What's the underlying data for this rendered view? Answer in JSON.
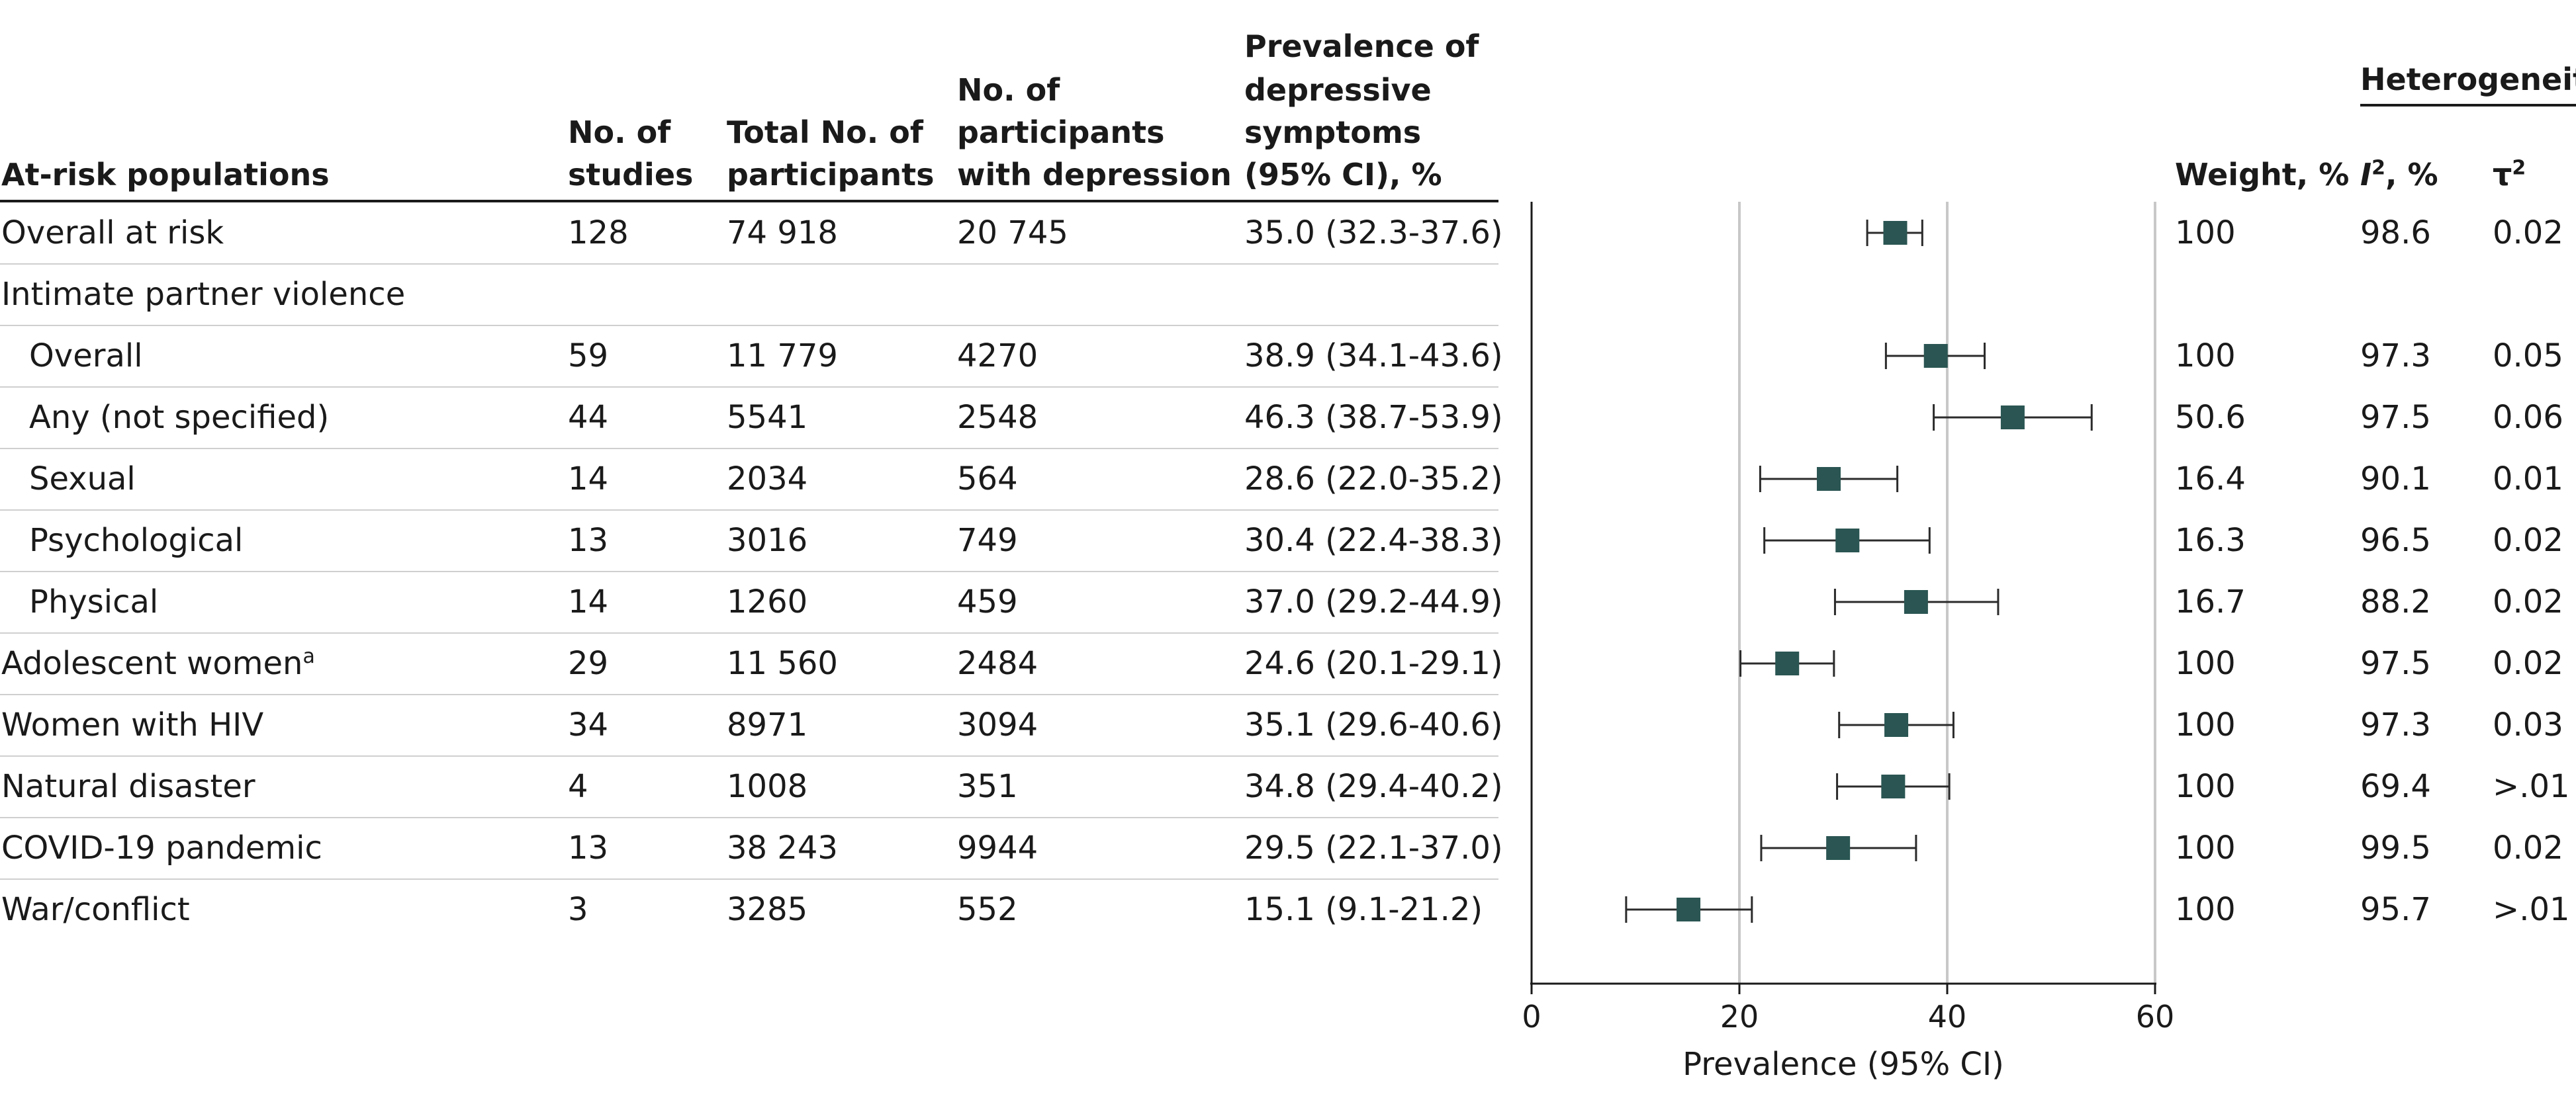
{
  "headers": {
    "population": "At-risk populations",
    "studies": [
      "No. of",
      "studies"
    ],
    "participants": [
      "Total No. of",
      "participants"
    ],
    "depression": [
      "No. of",
      "participants",
      "with depression"
    ],
    "prevalence": [
      "Prevalence of",
      "depressive",
      "symptoms",
      "(95% CI), %"
    ],
    "weight": "Weight, %",
    "heterogeneity": "Heterogeneity",
    "i2_base": "I",
    "i2_sup": "2",
    "i2_suffix": ", %",
    "tau_base": "τ",
    "tau_sup": "2"
  },
  "rows": [
    {
      "label": "Overall at risk",
      "indent": false,
      "studies": "128",
      "participants": "74 918",
      "depression": "20 745",
      "prevalence": "35.0 (32.3-37.6)",
      "weight": "100",
      "i2": "98.6",
      "tau2": "0.02"
    },
    {
      "label": "Intimate partner violence",
      "indent": false,
      "studies": "",
      "participants": "",
      "depression": "",
      "prevalence": "",
      "weight": "",
      "i2": "",
      "tau2": ""
    },
    {
      "label": "Overall",
      "indent": true,
      "studies": "59",
      "participants": "11 779",
      "depression": "4270",
      "prevalence": "38.9 (34.1-43.6)",
      "weight": "100",
      "i2": "97.3",
      "tau2": "0.05"
    },
    {
      "label": "Any (not specified)",
      "indent": true,
      "studies": "44",
      "participants": "5541",
      "depression": "2548",
      "prevalence": "46.3 (38.7-53.9)",
      "weight": "50.6",
      "i2": "97.5",
      "tau2": "0.06"
    },
    {
      "label": "Sexual",
      "indent": true,
      "studies": "14",
      "participants": "2034",
      "depression": "564",
      "prevalence": "28.6 (22.0-35.2)",
      "weight": "16.4",
      "i2": "90.1",
      "tau2": "0.01"
    },
    {
      "label": "Psychological",
      "indent": true,
      "studies": "13",
      "participants": "3016",
      "depression": "749",
      "prevalence": "30.4 (22.4-38.3)",
      "weight": "16.3",
      "i2": "96.5",
      "tau2": "0.02"
    },
    {
      "label": "Physical",
      "indent": true,
      "studies": "14",
      "participants": "1260",
      "depression": "459",
      "prevalence": "37.0 (29.2-44.9)",
      "weight": "16.7",
      "i2": "88.2",
      "tau2": "0.02"
    },
    {
      "label": "Adolescent women",
      "label_sup": "a",
      "indent": false,
      "studies": "29",
      "participants": "11 560",
      "depression": "2484",
      "prevalence": "24.6 (20.1-29.1)",
      "weight": "100",
      "i2": "97.5",
      "tau2": "0.02"
    },
    {
      "label": "Women with HIV",
      "indent": false,
      "studies": "34",
      "participants": "8971",
      "depression": "3094",
      "prevalence": "35.1 (29.6-40.6)",
      "weight": "100",
      "i2": "97.3",
      "tau2": "0.03"
    },
    {
      "label": "Natural disaster",
      "indent": false,
      "studies": "4",
      "participants": "1008",
      "depression": "351",
      "prevalence": "34.8 (29.4-40.2)",
      "weight": "100",
      "i2": "69.4",
      "tau2": ">.01"
    },
    {
      "label": "COVID-19 pandemic",
      "indent": false,
      "studies": "13",
      "participants": "38 243",
      "depression": "9944",
      "prevalence": "29.5 (22.1-37.0)",
      "weight": "100",
      "i2": "99.5",
      "tau2": "0.02"
    },
    {
      "label": "War/conflict",
      "indent": false,
      "studies": "3",
      "participants": "3285",
      "depression": "552",
      "prevalence": "15.1 (9.1-21.2)",
      "weight": "100",
      "i2": "95.7",
      "tau2": ">.01"
    }
  ],
  "chart_data": {
    "type": "forest",
    "xlabel": "Prevalence (95% CI)",
    "xlim": [
      0,
      60
    ],
    "xticks": [
      0,
      20,
      40,
      60
    ],
    "gridlines": [
      20,
      40,
      60
    ],
    "marker_color": "#2a5552",
    "points": [
      {
        "label": "Overall at risk",
        "estimate": 35.0,
        "lower": 32.3,
        "upper": 37.6
      },
      {
        "label": "Intimate partner violence",
        "estimate": null,
        "lower": null,
        "upper": null
      },
      {
        "label": "Overall",
        "estimate": 38.9,
        "lower": 34.1,
        "upper": 43.6
      },
      {
        "label": "Any (not specified)",
        "estimate": 46.3,
        "lower": 38.7,
        "upper": 53.9
      },
      {
        "label": "Sexual",
        "estimate": 28.6,
        "lower": 22.0,
        "upper": 35.2
      },
      {
        "label": "Psychological",
        "estimate": 30.4,
        "lower": 22.4,
        "upper": 38.3
      },
      {
        "label": "Physical",
        "estimate": 37.0,
        "lower": 29.2,
        "upper": 44.9
      },
      {
        "label": "Adolescent women",
        "estimate": 24.6,
        "lower": 20.1,
        "upper": 29.1
      },
      {
        "label": "Women with HIV",
        "estimate": 35.1,
        "lower": 29.6,
        "upper": 40.6
      },
      {
        "label": "Natural disaster",
        "estimate": 34.8,
        "lower": 29.4,
        "upper": 40.2
      },
      {
        "label": "COVID-19 pandemic",
        "estimate": 29.5,
        "lower": 22.1,
        "upper": 37.0
      },
      {
        "label": "War/conflict",
        "estimate": 15.1,
        "lower": 9.1,
        "upper": 21.2
      }
    ]
  }
}
